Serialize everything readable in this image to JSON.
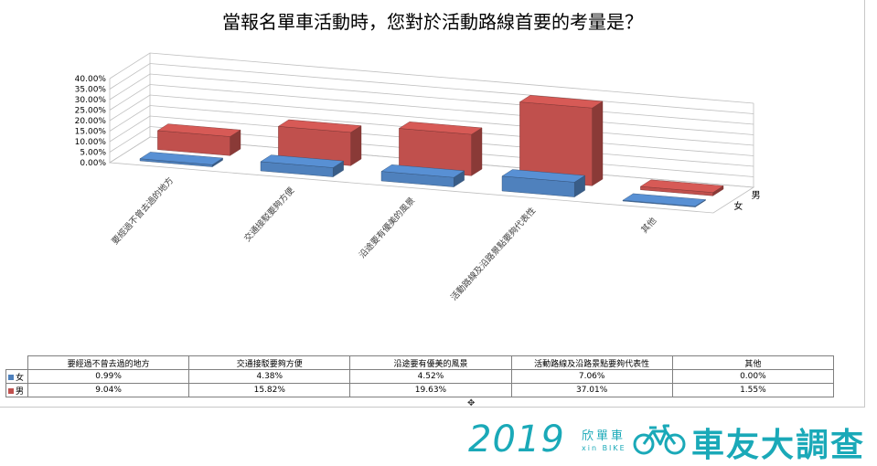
{
  "chart_data": {
    "type": "bar",
    "variant": "3d-clustered-column",
    "title": "當報名單車活動時，您對於活動路線首要的考量是？",
    "categories": [
      "要經過不曾去過的地方",
      "交通接駁要夠方便",
      "沿途要有優美的風景",
      "活動路線及沿路景點要夠代表性",
      "其他"
    ],
    "series": [
      {
        "name": "女",
        "values": [
          0.99,
          4.38,
          4.52,
          7.06,
          0.0
        ],
        "display": [
          "0.99%",
          "4.38%",
          "4.52%",
          "7.06%",
          "0.00%"
        ],
        "color": "#4f81bd"
      },
      {
        "name": "男",
        "values": [
          9.04,
          15.82,
          19.63,
          37.01,
          1.55
        ],
        "display": [
          "9.04%",
          "15.82%",
          "19.63%",
          "37.01%",
          "1.55%"
        ],
        "color": "#c0504d"
      }
    ],
    "ylim": [
      0,
      40
    ],
    "ytick_labels": [
      "0.00%",
      "5.00%",
      "10.00%",
      "15.00%",
      "20.00%",
      "25.00%",
      "30.00%",
      "35.00%",
      "40.00%"
    ],
    "grid": true,
    "depth_axis_labels": [
      "男",
      "女"
    ],
    "data_table": true
  },
  "brand": {
    "year": "2019",
    "cn": "欣單車",
    "en": "xin BIKE",
    "survey": "車友大調查"
  }
}
